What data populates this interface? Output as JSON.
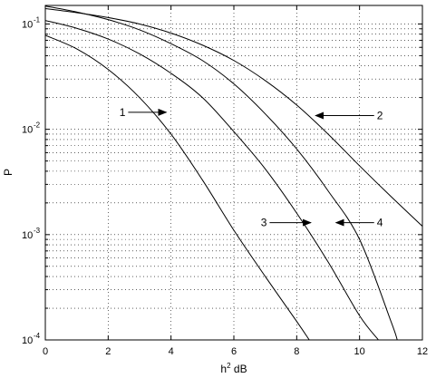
{
  "chart_data": {
    "type": "line",
    "title": "",
    "xlabel": "h",
    "xlabel_sup": "2",
    "xlabel_unit": "dB",
    "ylabel": "P",
    "xlim": [
      0,
      12
    ],
    "ylim": [
      0.0001,
      0.15
    ],
    "yscale": "log",
    "grid": true,
    "x_ticks": [
      {
        "value": 0,
        "label": "0"
      },
      {
        "value": 2,
        "label": "2"
      },
      {
        "value": 4,
        "label": "4"
      },
      {
        "value": 6,
        "label": "6"
      },
      {
        "value": 8,
        "label": "8"
      },
      {
        "value": 10,
        "label": "10"
      },
      {
        "value": 12,
        "label": "12"
      }
    ],
    "y_ticks": [
      {
        "value": 0.1,
        "base": "10",
        "exp": "-1"
      },
      {
        "value": 0.01,
        "base": "10",
        "exp": "-2"
      },
      {
        "value": 0.001,
        "base": "10",
        "exp": "-3"
      },
      {
        "value": 0.0001,
        "base": "10",
        "exp": "-4"
      }
    ],
    "series": [
      {
        "name": "1",
        "color": "#000000",
        "x": [
          0,
          1,
          2,
          3,
          4,
          5,
          6,
          7,
          8,
          8.4
        ],
        "y": [
          0.078,
          0.058,
          0.037,
          0.02,
          0.009,
          0.0033,
          0.0011,
          0.0004,
          0.00015,
          0.0001
        ]
      },
      {
        "name": "2",
        "color": "#000000",
        "x": [
          0,
          1,
          2,
          3,
          4,
          5,
          6,
          7,
          8,
          9,
          10,
          11,
          12
        ],
        "y": [
          0.14,
          0.128,
          0.115,
          0.1,
          0.082,
          0.063,
          0.045,
          0.029,
          0.017,
          0.009,
          0.0045,
          0.0023,
          0.0012
        ]
      },
      {
        "name": "3",
        "color": "#000000",
        "x": [
          0,
          1,
          2,
          3,
          4,
          5,
          6,
          7,
          8,
          9,
          10,
          10.6
        ],
        "y": [
          0.108,
          0.091,
          0.072,
          0.052,
          0.034,
          0.02,
          0.0095,
          0.0042,
          0.0016,
          0.00055,
          0.00017,
          0.0001
        ]
      },
      {
        "name": "4",
        "color": "#000000",
        "x": [
          0,
          1,
          2,
          3,
          4,
          5,
          6,
          7,
          8,
          9,
          10,
          11,
          11.2
        ],
        "y": [
          0.148,
          0.13,
          0.11,
          0.088,
          0.065,
          0.045,
          0.027,
          0.014,
          0.0065,
          0.0026,
          0.0009,
          0.00015,
          0.0001
        ]
      }
    ],
    "annotations": [
      {
        "label": "1",
        "text_x": 2.55,
        "text_y": 0.0145,
        "tip_x": 3.85,
        "tip_y": 0.0145
      },
      {
        "label": "2",
        "text_x": 10.55,
        "text_y": 0.0135,
        "tip_x": 8.6,
        "tip_y": 0.0135
      },
      {
        "label": "3",
        "text_x": 7.05,
        "text_y": 0.0013,
        "tip_x": 8.45,
        "tip_y": 0.0013
      },
      {
        "label": "4",
        "text_x": 10.55,
        "text_y": 0.0013,
        "tip_x": 9.25,
        "tip_y": 0.0013
      }
    ]
  }
}
